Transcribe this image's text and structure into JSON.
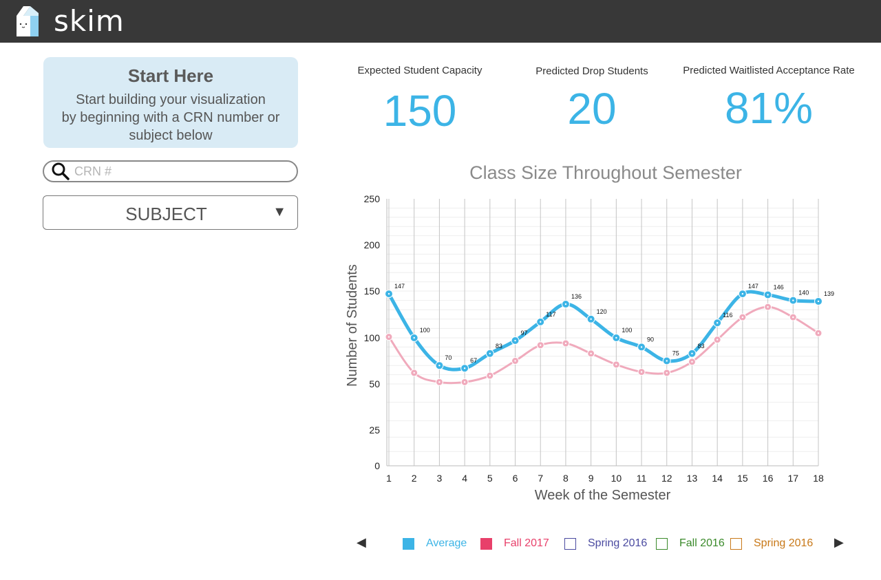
{
  "app": {
    "name": "skim"
  },
  "start_box": {
    "title": "Start Here",
    "line1": "Start building your visualization",
    "line2": "by beginning with a CRN number or",
    "line3": "subject below"
  },
  "search": {
    "placeholder": "CRN #",
    "value": ""
  },
  "subject": {
    "selected": "SUBJECT"
  },
  "stats": [
    {
      "label": "Expected Student Capacity",
      "value": "150"
    },
    {
      "label": "Predicted Drop Students",
      "value": "20"
    },
    {
      "label": "Predicted Waitlisted Acceptance Rate",
      "value": "81%"
    }
  ],
  "colors": {
    "accent": "#3cb4e6",
    "topbar": "#383838",
    "start_box": "#d9ebf5"
  },
  "chart_data": {
    "type": "line",
    "title": "Class Size Throughout Semester",
    "xlabel": "Week of the Semester",
    "ylabel": "Number of Students",
    "x": [
      1,
      2,
      3,
      4,
      5,
      6,
      7,
      8,
      9,
      10,
      11,
      12,
      13,
      14,
      15,
      16,
      17,
      18
    ],
    "y_ticks": [
      0,
      25,
      50,
      100,
      150,
      200,
      250
    ],
    "grid": true,
    "series": [
      {
        "name": "Average",
        "color": "#3cb4e6",
        "values": [
          147,
          100,
          70,
          67,
          83,
          97,
          117,
          136,
          120,
          100,
          90,
          75,
          83,
          116,
          147,
          146,
          140,
          139
        ],
        "point_labels": [
          "147",
          "100",
          "70",
          "67",
          "83",
          "97",
          "117",
          "136",
          "120",
          "100",
          "90",
          "75",
          "83",
          "116",
          "147",
          "146",
          "140",
          "139"
        ]
      },
      {
        "name": "Fall 2017",
        "color": "#f0aabc",
        "values": [
          101,
          62,
          52,
          52,
          59,
          75,
          92,
          94,
          83,
          71,
          63,
          62,
          74,
          98,
          122,
          133,
          122,
          105
        ]
      }
    ],
    "legend": [
      {
        "name": "Average",
        "color": "#3cb4e6",
        "filled": true
      },
      {
        "name": "Fall 2017",
        "color": "#e8406a",
        "filled": true
      },
      {
        "name": "Spring 2016",
        "color": "#4a4aa0",
        "filled": false
      },
      {
        "name": "Fall 2016",
        "color": "#3a8a2a",
        "filled": false
      },
      {
        "name": "Spring 2016",
        "color": "#c87818",
        "filled": false
      }
    ],
    "legend_placement": "bottom"
  }
}
